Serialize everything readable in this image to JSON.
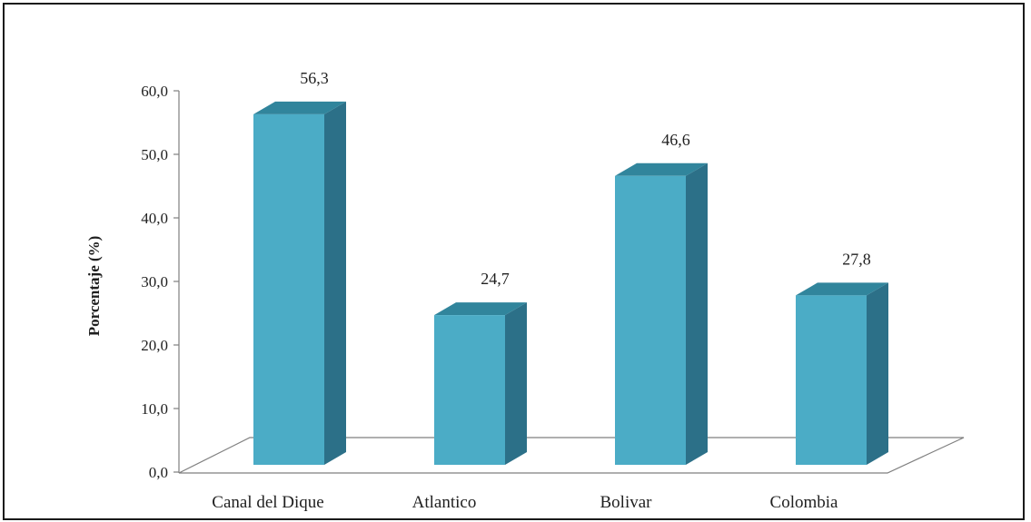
{
  "chart_data": {
    "type": "bar",
    "style": "3d-column",
    "categories": [
      "Canal del Dique",
      "Atlantico",
      "Bolivar",
      "Colombia"
    ],
    "values": [
      56.3,
      24.7,
      46.6,
      27.8
    ],
    "data_labels": [
      "56,3",
      "24,7",
      "46,6",
      "27,8"
    ],
    "ylabel": "Porcentaje (%)",
    "xlabel": "",
    "title": "",
    "ylim": [
      0,
      60
    ],
    "yticks": [
      0,
      10,
      20,
      30,
      40,
      50,
      60
    ],
    "ytick_labels": [
      "0,0",
      "10,0",
      "20,0",
      "30,0",
      "40,0",
      "50,0",
      "60,0"
    ],
    "grid": false,
    "legend": "none",
    "colors": {
      "bar_front": "#4BACC6",
      "bar_side": "#2C7088",
      "bar_top": "#31859C",
      "axis": "#7f7f7f"
    }
  }
}
